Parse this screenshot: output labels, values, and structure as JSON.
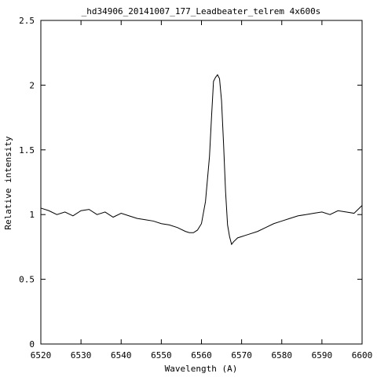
{
  "chart_data": {
    "type": "line",
    "title": "_hd34906_20141007_177_Leadbeater_telrem  4x600s",
    "xlabel": "Wavelength (A)",
    "ylabel": "Relative intensity",
    "xlim": [
      6520,
      6600
    ],
    "ylim": [
      0,
      2.5
    ],
    "x_ticks": [
      6520,
      6530,
      6540,
      6550,
      6560,
      6570,
      6580,
      6590,
      6600
    ],
    "x_tick_labels": [
      "6520",
      "6530",
      "6540",
      "6550",
      "6560",
      "6570",
      "6580",
      "6590",
      "6600"
    ],
    "y_ticks": [
      0,
      0.5,
      1,
      1.5,
      2,
      2.5
    ],
    "y_tick_labels": [
      "0",
      "0.5",
      "1",
      "1.5",
      "2",
      "2.5"
    ],
    "grid": false,
    "legend": "none",
    "line_color": "#000000",
    "series": [
      {
        "x": [
          6520,
          6522,
          6524,
          6526,
          6528,
          6530,
          6532,
          6534,
          6536,
          6538,
          6540,
          6542,
          6544,
          6546,
          6548,
          6550,
          6552,
          6554,
          6556,
          6557,
          6558,
          6559,
          6560,
          6561,
          6562,
          6562.5,
          6563,
          6563.5,
          6564,
          6564.5,
          6565,
          6565.5,
          6566,
          6566.5,
          6567,
          6567.5,
          6568,
          6569,
          6570,
          6571,
          6572,
          6574,
          6576,
          6578,
          6580,
          6582,
          6584,
          6586,
          6588,
          6590,
          6592,
          6594,
          6596,
          6598,
          6600
        ],
        "y": [
          1.05,
          1.03,
          1.0,
          1.02,
          0.99,
          1.03,
          1.04,
          1.0,
          1.02,
          0.98,
          1.01,
          0.99,
          0.97,
          0.96,
          0.95,
          0.93,
          0.92,
          0.9,
          0.87,
          0.86,
          0.86,
          0.88,
          0.93,
          1.1,
          1.45,
          1.75,
          2.03,
          2.06,
          2.08,
          2.05,
          1.88,
          1.55,
          1.18,
          0.92,
          0.83,
          0.77,
          0.79,
          0.82,
          0.83,
          0.84,
          0.85,
          0.87,
          0.9,
          0.93,
          0.95,
          0.97,
          0.99,
          1.0,
          1.01,
          1.02,
          1.0,
          1.03,
          1.02,
          1.01,
          1.07
        ]
      }
    ]
  }
}
